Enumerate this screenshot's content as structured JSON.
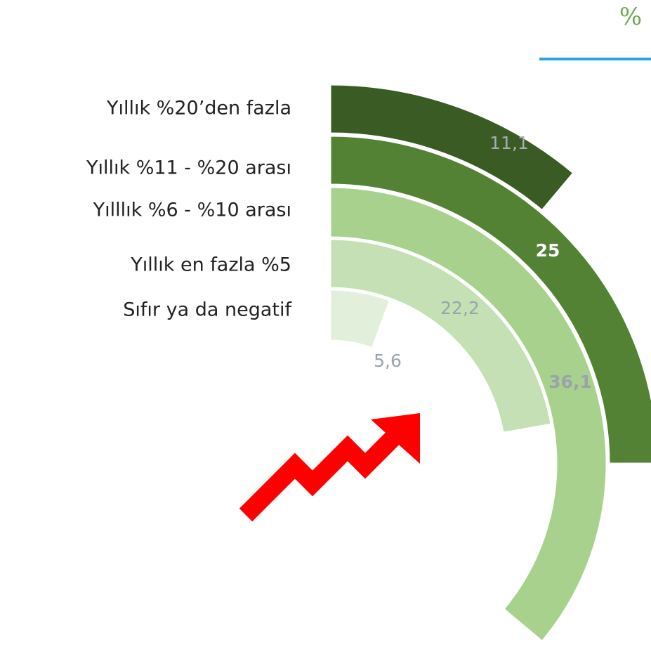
{
  "chart_data": {
    "type": "radial_bar",
    "subtitle": "%",
    "categories": [
      "Yıllık %20’den fazla",
      "Yıllık %11 - %20 arası",
      "Yılllık %6 - %10 arası",
      "Yıllık en fazla %5",
      "Sıfır ya da negatif"
    ],
    "values": [
      11.1,
      25,
      36.1,
      22.2,
      5.6
    ],
    "value_labels": [
      "11,1",
      "25",
      "36,1",
      "22,2",
      "5,6"
    ],
    "colors": [
      "#3b5b24",
      "#548235",
      "#a9d18e",
      "#c5e0b4",
      "#e2efda"
    ],
    "ylim": [
      0,
      100
    ]
  }
}
